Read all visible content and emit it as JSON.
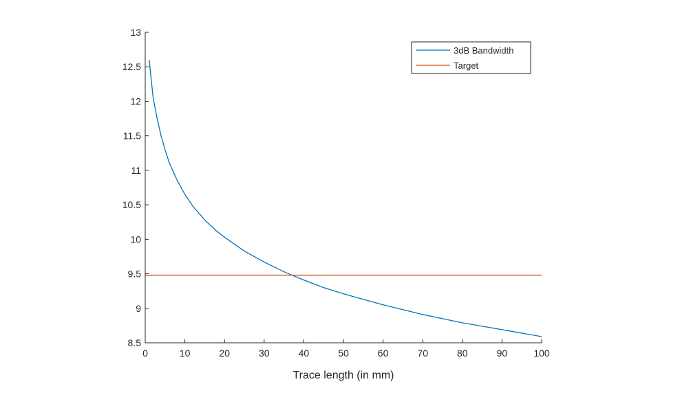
{
  "chart_data": {
    "type": "line",
    "title": "",
    "xlabel": "Trace length (in mm)",
    "ylabel": "",
    "xlim": [
      0,
      100
    ],
    "ylim": [
      8.5,
      13
    ],
    "xticks": [
      0,
      10,
      20,
      30,
      40,
      50,
      60,
      70,
      80,
      90,
      100
    ],
    "xtick_labels": [
      "0",
      "10",
      "20",
      "30",
      "40",
      "50",
      "60",
      "70",
      "80",
      "90",
      "100"
    ],
    "yticks": [
      8.5,
      9,
      9.5,
      10,
      10.5,
      11,
      11.5,
      12,
      12.5,
      13
    ],
    "ytick_labels": [
      "8.5",
      "9",
      "9.5",
      "10",
      "10.5",
      "11",
      "11.5",
      "12",
      "12.5",
      "13"
    ],
    "grid": false,
    "legend_position": "top-right",
    "series": [
      {
        "name": "3dB Bandwidth",
        "color": "#0072BD",
        "x": [
          1,
          2,
          3,
          4,
          5,
          6,
          8,
          10,
          12,
          15,
          18,
          20,
          25,
          30,
          35,
          37,
          40,
          45,
          50,
          55,
          60,
          65,
          70,
          75,
          80,
          85,
          90,
          95,
          100
        ],
        "y": [
          12.6,
          12.05,
          11.75,
          11.5,
          11.3,
          11.12,
          10.86,
          10.65,
          10.48,
          10.28,
          10.12,
          10.03,
          9.83,
          9.67,
          9.53,
          9.48,
          9.41,
          9.3,
          9.21,
          9.13,
          9.05,
          8.98,
          8.91,
          8.85,
          8.79,
          8.74,
          8.69,
          8.64,
          8.59
        ]
      },
      {
        "name": "Target",
        "color": "#D95319",
        "x": [
          0,
          100
        ],
        "y": [
          9.48,
          9.48
        ]
      }
    ]
  }
}
